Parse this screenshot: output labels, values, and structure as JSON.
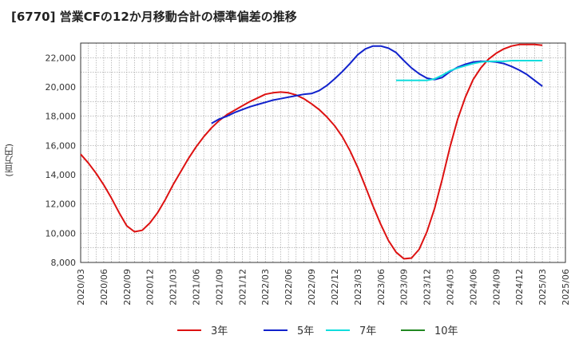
{
  "chart_data": {
    "type": "line",
    "title": "[6770]  営業CFの12か月移動合計の標準偏差の推移",
    "ylabel": "(百万円)",
    "xlabel": "",
    "ylim": [
      8000,
      23000
    ],
    "yticks": [
      8000,
      10000,
      12000,
      14000,
      16000,
      18000,
      20000,
      22000
    ],
    "ytick_labels": [
      "8,000",
      "10,000",
      "12,000",
      "14,000",
      "16,000",
      "18,000",
      "20,000",
      "22,000"
    ],
    "xticks": [
      "2020/03",
      "2020/06",
      "2020/09",
      "2020/12",
      "2021/03",
      "2021/06",
      "2021/09",
      "2021/12",
      "2022/03",
      "2022/06",
      "2022/09",
      "2022/12",
      "2023/03",
      "2023/06",
      "2023/09",
      "2023/12",
      "2024/03",
      "2024/06",
      "2024/09",
      "2024/12",
      "2025/03",
      "2025/06"
    ],
    "grid": true,
    "legend_position": "bottom",
    "series": [
      {
        "name": "3年",
        "color": "#dd1111",
        "points": [
          [
            "2020/03",
            15400
          ],
          [
            "2020/04",
            14800
          ],
          [
            "2020/05",
            14100
          ],
          [
            "2020/06",
            13300
          ],
          [
            "2020/07",
            12400
          ],
          [
            "2020/08",
            11400
          ],
          [
            "2020/09",
            10500
          ],
          [
            "2020/10",
            10100
          ],
          [
            "2020/11",
            10200
          ],
          [
            "2020/12",
            10700
          ],
          [
            "2021/01",
            11400
          ],
          [
            "2021/02",
            12300
          ],
          [
            "2021/03",
            13300
          ],
          [
            "2021/04",
            14200
          ],
          [
            "2021/05",
            15100
          ],
          [
            "2021/06",
            15900
          ],
          [
            "2021/07",
            16600
          ],
          [
            "2021/08",
            17200
          ],
          [
            "2021/09",
            17700
          ],
          [
            "2021/10",
            18100
          ],
          [
            "2021/11",
            18400
          ],
          [
            "2021/12",
            18700
          ],
          [
            "2022/01",
            19000
          ],
          [
            "2022/02",
            19250
          ],
          [
            "2022/03",
            19500
          ],
          [
            "2022/04",
            19600
          ],
          [
            "2022/05",
            19650
          ],
          [
            "2022/06",
            19600
          ],
          [
            "2022/07",
            19450
          ],
          [
            "2022/08",
            19200
          ],
          [
            "2022/09",
            18850
          ],
          [
            "2022/10",
            18450
          ],
          [
            "2022/11",
            17950
          ],
          [
            "2022/12",
            17350
          ],
          [
            "2023/01",
            16600
          ],
          [
            "2023/02",
            15650
          ],
          [
            "2023/03",
            14500
          ],
          [
            "2023/04",
            13200
          ],
          [
            "2023/05",
            11850
          ],
          [
            "2023/06",
            10600
          ],
          [
            "2023/07",
            9500
          ],
          [
            "2023/08",
            8700
          ],
          [
            "2023/09",
            8250
          ],
          [
            "2023/10",
            8300
          ],
          [
            "2023/11",
            8900
          ],
          [
            "2023/12",
            10100
          ],
          [
            "2024/01",
            11700
          ],
          [
            "2024/02",
            13700
          ],
          [
            "2024/03",
            15900
          ],
          [
            "2024/04",
            17800
          ],
          [
            "2024/05",
            19300
          ],
          [
            "2024/06",
            20500
          ],
          [
            "2024/07",
            21300
          ],
          [
            "2024/08",
            21900
          ],
          [
            "2024/09",
            22300
          ],
          [
            "2024/10",
            22600
          ],
          [
            "2024/11",
            22800
          ],
          [
            "2024/12",
            22900
          ],
          [
            "2025/01",
            22900
          ],
          [
            "2025/02",
            22900
          ],
          [
            "2025/03",
            22850
          ]
        ]
      },
      {
        "name": "5年",
        "color": "#1122cc",
        "points": [
          [
            "2021/08",
            17500
          ],
          [
            "2021/09",
            17800
          ],
          [
            "2021/10",
            18000
          ],
          [
            "2021/11",
            18250
          ],
          [
            "2021/12",
            18450
          ],
          [
            "2022/01",
            18650
          ],
          [
            "2022/02",
            18800
          ],
          [
            "2022/03",
            18950
          ],
          [
            "2022/04",
            19100
          ],
          [
            "2022/05",
            19200
          ],
          [
            "2022/06",
            19300
          ],
          [
            "2022/07",
            19400
          ],
          [
            "2022/08",
            19500
          ],
          [
            "2022/09",
            19550
          ],
          [
            "2022/10",
            19750
          ],
          [
            "2022/11",
            20100
          ],
          [
            "2022/12",
            20550
          ],
          [
            "2023/01",
            21050
          ],
          [
            "2023/02",
            21600
          ],
          [
            "2023/03",
            22200
          ],
          [
            "2023/04",
            22600
          ],
          [
            "2023/05",
            22800
          ],
          [
            "2023/06",
            22800
          ],
          [
            "2023/07",
            22650
          ],
          [
            "2023/08",
            22350
          ],
          [
            "2023/09",
            21800
          ],
          [
            "2023/10",
            21300
          ],
          [
            "2023/11",
            20900
          ],
          [
            "2023/12",
            20600
          ],
          [
            "2024/01",
            20500
          ],
          [
            "2024/02",
            20650
          ],
          [
            "2024/03",
            21050
          ],
          [
            "2024/04",
            21350
          ],
          [
            "2024/05",
            21550
          ],
          [
            "2024/06",
            21700
          ],
          [
            "2024/07",
            21750
          ],
          [
            "2024/08",
            21750
          ],
          [
            "2024/09",
            21700
          ],
          [
            "2024/10",
            21600
          ],
          [
            "2024/11",
            21400
          ],
          [
            "2024/12",
            21150
          ],
          [
            "2025/01",
            20850
          ],
          [
            "2025/02",
            20450
          ],
          [
            "2025/03",
            20050
          ]
        ]
      },
      {
        "name": "7年",
        "color": "#11dddd",
        "points": [
          [
            "2023/08",
            20450
          ],
          [
            "2023/09",
            20450
          ],
          [
            "2023/10",
            20450
          ],
          [
            "2023/11",
            20450
          ],
          [
            "2023/12",
            20450
          ],
          [
            "2024/01",
            20550
          ],
          [
            "2024/02",
            20800
          ],
          [
            "2024/03",
            21100
          ],
          [
            "2024/04",
            21300
          ],
          [
            "2024/05",
            21450
          ],
          [
            "2024/06",
            21600
          ],
          [
            "2024/07",
            21700
          ],
          [
            "2024/08",
            21750
          ],
          [
            "2024/09",
            21750
          ],
          [
            "2024/10",
            21750
          ],
          [
            "2024/11",
            21800
          ],
          [
            "2024/12",
            21800
          ],
          [
            "2025/01",
            21800
          ],
          [
            "2025/02",
            21800
          ],
          [
            "2025/03",
            21800
          ]
        ]
      },
      {
        "name": "10年",
        "color": "#228822",
        "points": []
      }
    ]
  }
}
